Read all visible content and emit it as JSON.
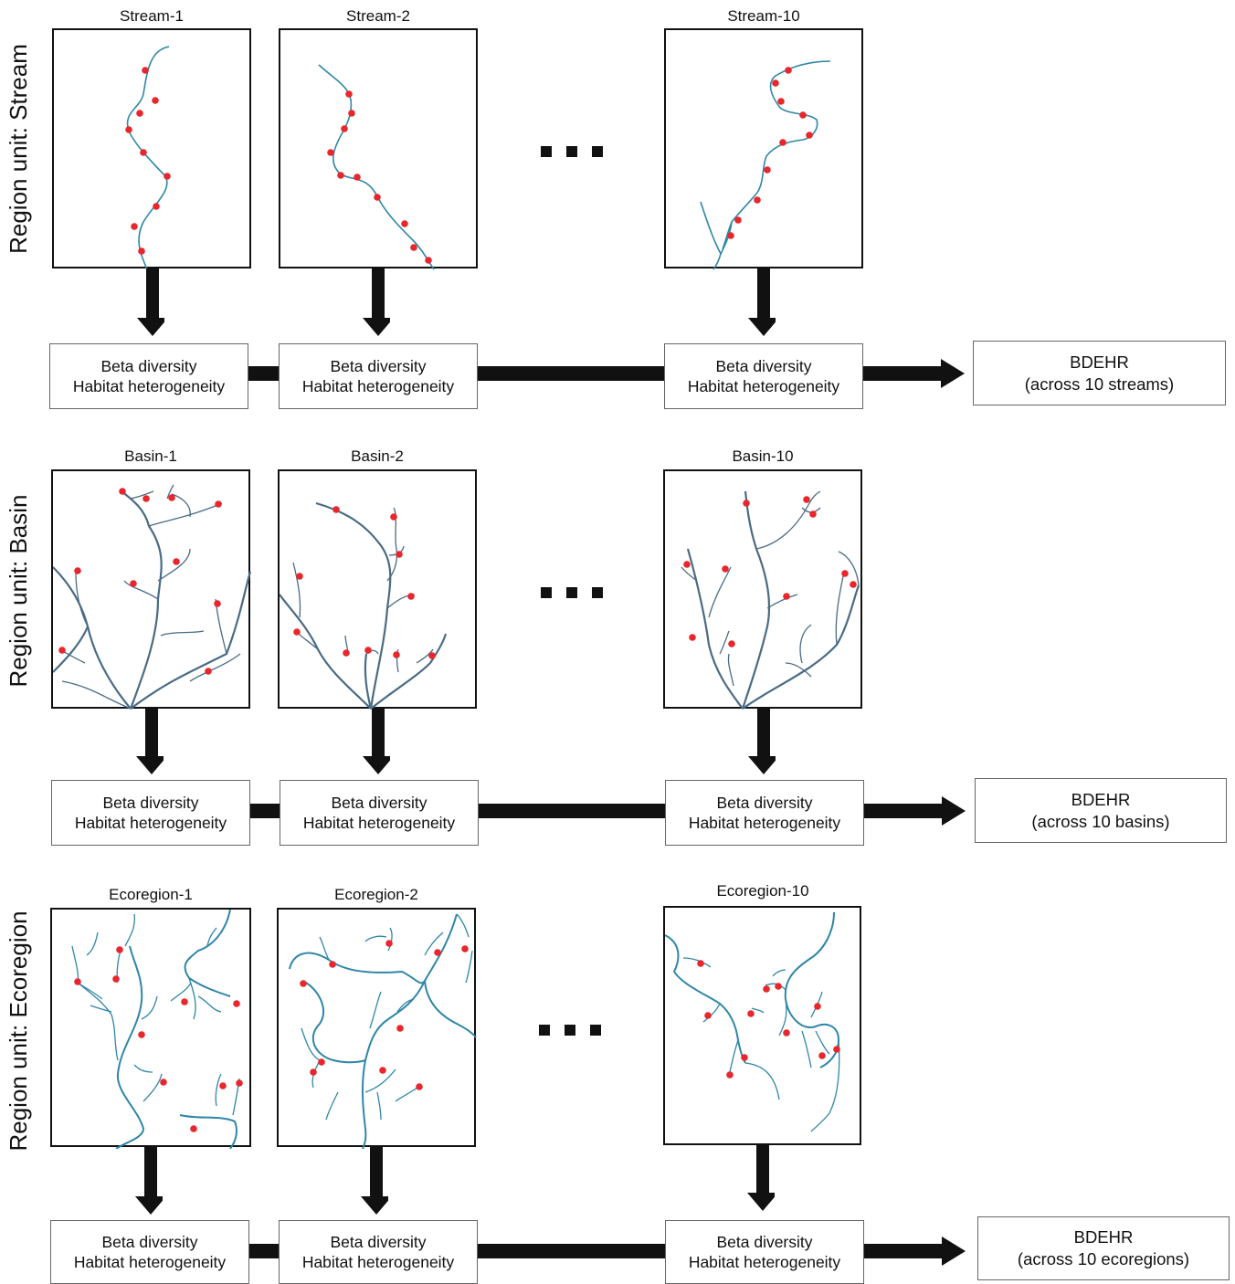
{
  "rows": [
    {
      "row_label": "Region unit: Stream",
      "panels": [
        "Stream-1",
        "Stream-2",
        "Stream-10"
      ],
      "box_line1": "Beta diversity",
      "box_line2": "Habitat heterogeneity",
      "result_line1": "BDEHR",
      "result_line2": "(across 10 streams)"
    },
    {
      "row_label": "Region unit: Basin",
      "panels": [
        "Basin-1",
        "Basin-2",
        "Basin-10"
      ],
      "box_line1": "Beta diversity",
      "box_line2": "Habitat heterogeneity",
      "result_line1": "BDEHR",
      "result_line2": "(across 10 basins)"
    },
    {
      "row_label": "Region unit: Ecoregion",
      "panels": [
        "Ecoregion-1",
        "Ecoregion-2",
        "Ecoregion-10"
      ],
      "box_line1": "Beta diversity",
      "box_line2": "Habitat heterogeneity",
      "result_line1": "BDEHR",
      "result_line2": "(across 10 ecoregions)"
    }
  ],
  "colors": {
    "stream_line": "#2f86a8",
    "basin_line": "#4a6b84",
    "site_dot": "#e8262b",
    "arrow": "#111111"
  },
  "icons": {
    "ellipsis": "three-square-dots",
    "arrow": "block-arrow"
  }
}
